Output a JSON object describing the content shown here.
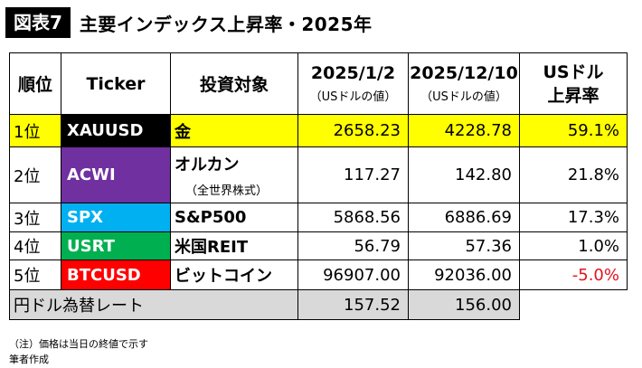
{
  "header": {
    "figure_label": "図表7",
    "title": "主要インデックス上昇率・2025年"
  },
  "table": {
    "columns": {
      "rank": "順位",
      "ticker": "Ticker",
      "target": "投資対象",
      "date1": "2025/1/2",
      "date1_note": "（USドルの値）",
      "date2": "2025/12/10",
      "date2_note": "（USドルの値）",
      "rate_line1": "USドル",
      "rate_line2": "上昇率"
    },
    "rows": [
      {
        "rank": "1位",
        "ticker": "XAUUSD",
        "ticker_color": "#000000",
        "target": "金",
        "target_note": "",
        "v1": "2658.23",
        "v2": "4228.78",
        "rate": "59.1%"
      },
      {
        "rank": "2位",
        "ticker": "ACWI",
        "ticker_color": "#7030a0",
        "target": "オルカン",
        "target_note": "（全世界株式）",
        "v1": "117.27",
        "v2": "142.80",
        "rate": "21.8%"
      },
      {
        "rank": "3位",
        "ticker": "SPX",
        "ticker_color": "#00b0f0",
        "target": "S&P500",
        "target_note": "",
        "v1": "5868.56",
        "v2": "6886.69",
        "rate": "17.3%"
      },
      {
        "rank": "4位",
        "ticker": "USRT",
        "ticker_color": "#00b050",
        "target": "米国REIT",
        "target_note": "",
        "v1": "56.79",
        "v2": "57.36",
        "rate": "1.0%"
      },
      {
        "rank": "5位",
        "ticker": "BTCUSD",
        "ticker_color": "#ff0000",
        "target": "ビットコイン",
        "target_note": "",
        "v1": "96907.00",
        "v2": "92036.00",
        "rate": "-5.0%"
      }
    ],
    "fx": {
      "label": "円ドル為替レート",
      "v1": "157.52",
      "v2": "156.00"
    }
  },
  "notes": {
    "line1": "（注）価格は当日の終値で示す",
    "line2": "筆者作成"
  }
}
